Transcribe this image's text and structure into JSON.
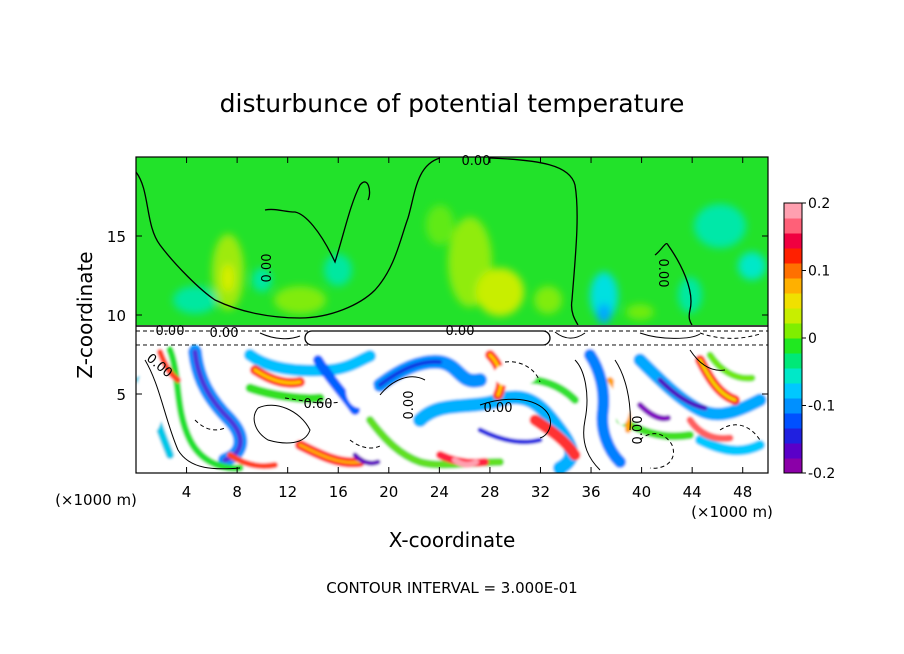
{
  "chart_data": {
    "type": "heatmap",
    "title": "disturbunce of potential temperature",
    "xlabel": "X-coordinate",
    "ylabel": "Z-coordinate",
    "x_unit": "(×1000 m)",
    "y_unit": "(×1000 m)",
    "xlim": [
      0,
      50
    ],
    "ylim": [
      0,
      20
    ],
    "x_ticks": [
      4,
      8,
      12,
      16,
      20,
      24,
      28,
      32,
      36,
      40,
      44,
      48
    ],
    "y_ticks": [
      5,
      10,
      15
    ],
    "colorbar": {
      "range": [
        -0.2,
        0.2
      ],
      "tick_labels": [
        "0.2",
        "0.1",
        "0",
        "-0.1",
        "-0.2"
      ],
      "colors": [
        "#8b00a8",
        "#5a00c8",
        "#2020e0",
        "#0050ff",
        "#0090ff",
        "#00c8ff",
        "#00e8c8",
        "#00e878",
        "#20e820",
        "#80ee00",
        "#c8ee00",
        "#f0e000",
        "#ffb000",
        "#ff7000",
        "#ff2000",
        "#f00040",
        "#ff6078",
        "#ffa0b0"
      ]
    },
    "contour_labels": [
      "0.00",
      "0.00",
      "0.00",
      "0.00",
      "0.00",
      "0.00",
      "0.60",
      "0.00",
      "0.00",
      "0.00",
      "0.00"
    ],
    "footnote": "CONTOUR INTERVAL = 3.000E-01",
    "grid": false
  }
}
